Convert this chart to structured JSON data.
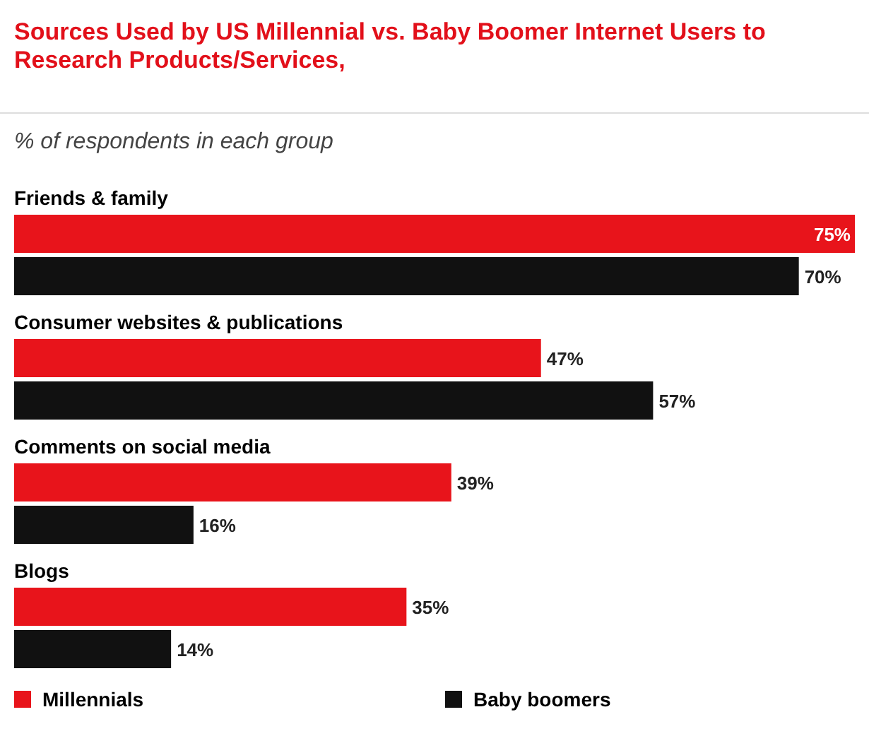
{
  "chart_data": {
    "type": "bar",
    "orientation": "horizontal",
    "title": "Sources Used by US Millennial vs. Baby Boomer Internet Users to Research Products/Services,",
    "subtitle": "% of respondents in each group",
    "categories": [
      "Friends & family",
      "Consumer websites & publications",
      "Comments on social media",
      "Blogs"
    ],
    "series": [
      {
        "name": "Millennials",
        "color": "#e8141b",
        "values": [
          75,
          47,
          39,
          35
        ],
        "value_labels": [
          "75%",
          "47%",
          "39%",
          "35%"
        ]
      },
      {
        "name": "Baby boomers",
        "color": "#111111",
        "values": [
          70,
          57,
          16,
          14
        ],
        "value_labels": [
          "70%",
          "57%",
          "16%",
          "14%"
        ]
      }
    ],
    "legend": "bottom"
  }
}
